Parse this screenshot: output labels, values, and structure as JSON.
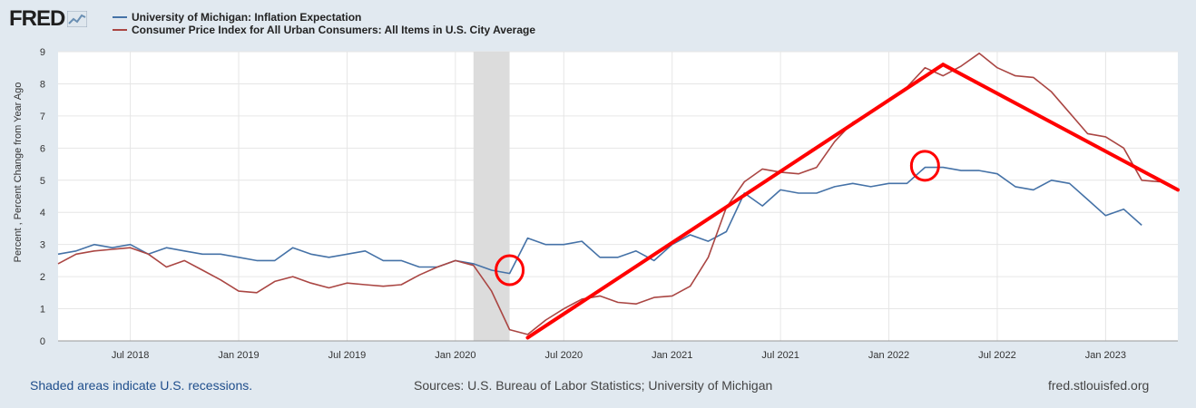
{
  "header": {
    "logo_text": "FRED",
    "logo_icon": "fred-chart-icon"
  },
  "legend": [
    {
      "label": "University of Michigan: Inflation Expectation",
      "color": "#4572a7"
    },
    {
      "label": "Consumer Price Index for All Urban Consumers: All Items in U.S. City Average",
      "color": "#aa4643"
    }
  ],
  "footer": {
    "recession_note": "Shaded areas indicate U.S. recessions.",
    "sources": "Sources: U.S. Bureau of Labor Statistics; University of Michigan",
    "site": "fred.stlouisfed.org"
  },
  "chart_data": {
    "type": "line",
    "ylabel": "Percent , Percent Change from Year Ago",
    "ylim": [
      0,
      9
    ],
    "yticks": [
      0,
      1,
      2,
      3,
      4,
      5,
      6,
      7,
      8,
      9
    ],
    "xrange": [
      "2018-03",
      "2023-05"
    ],
    "xticks": [
      {
        "label": "Jul 2018",
        "date": "2018-07"
      },
      {
        "label": "Jan 2019",
        "date": "2019-01"
      },
      {
        "label": "Jul 2019",
        "date": "2019-07"
      },
      {
        "label": "Jan 2020",
        "date": "2020-01"
      },
      {
        "label": "Jul 2020",
        "date": "2020-07"
      },
      {
        "label": "Jan 2021",
        "date": "2021-01"
      },
      {
        "label": "Jul 2021",
        "date": "2021-07"
      },
      {
        "label": "Jan 2022",
        "date": "2022-01"
      },
      {
        "label": "Jul 2022",
        "date": "2022-07"
      },
      {
        "label": "Jan 2023",
        "date": "2023-01"
      }
    ],
    "grid": true,
    "recession": {
      "start": "2020-02",
      "end": "2020-04"
    },
    "x": [
      "2018-03",
      "2018-04",
      "2018-05",
      "2018-06",
      "2018-07",
      "2018-08",
      "2018-09",
      "2018-10",
      "2018-11",
      "2018-12",
      "2019-01",
      "2019-02",
      "2019-03",
      "2019-04",
      "2019-05",
      "2019-06",
      "2019-07",
      "2019-08",
      "2019-09",
      "2019-10",
      "2019-11",
      "2019-12",
      "2020-01",
      "2020-02",
      "2020-03",
      "2020-04",
      "2020-05",
      "2020-06",
      "2020-07",
      "2020-08",
      "2020-09",
      "2020-10",
      "2020-11",
      "2020-12",
      "2021-01",
      "2021-02",
      "2021-03",
      "2021-04",
      "2021-05",
      "2021-06",
      "2021-07",
      "2021-08",
      "2021-09",
      "2021-10",
      "2021-11",
      "2021-12",
      "2022-01",
      "2022-02",
      "2022-03",
      "2022-04",
      "2022-05",
      "2022-06",
      "2022-07",
      "2022-08",
      "2022-09",
      "2022-10",
      "2022-11",
      "2022-12",
      "2023-01",
      "2023-02",
      "2023-03",
      "2023-04"
    ],
    "series": [
      {
        "name": "University of Michigan: Inflation Expectation",
        "color": "#4572a7",
        "values": [
          2.7,
          2.8,
          3.0,
          2.9,
          3.0,
          2.7,
          2.9,
          2.8,
          2.7,
          2.7,
          2.6,
          2.5,
          2.5,
          2.9,
          2.7,
          2.6,
          2.7,
          2.8,
          2.5,
          2.5,
          2.3,
          2.3,
          2.5,
          2.4,
          2.2,
          2.1,
          3.2,
          3.0,
          3.0,
          3.1,
          2.6,
          2.6,
          2.8,
          2.5,
          3.0,
          3.3,
          3.1,
          3.4,
          4.6,
          4.2,
          4.7,
          4.6,
          4.6,
          4.8,
          4.9,
          4.8,
          4.9,
          4.9,
          5.4,
          5.4,
          5.3,
          5.3,
          5.2,
          4.8,
          4.7,
          5.0,
          4.9,
          4.4,
          3.9,
          4.1,
          3.6,
          null
        ]
      },
      {
        "name": "Consumer Price Index for All Urban Consumers: All Items in U.S. City Average",
        "color": "#aa4643",
        "values": [
          2.4,
          2.7,
          2.8,
          2.85,
          2.9,
          2.7,
          2.3,
          2.5,
          2.2,
          1.9,
          1.55,
          1.5,
          1.85,
          2.0,
          1.8,
          1.65,
          1.8,
          1.75,
          1.7,
          1.75,
          2.05,
          2.3,
          2.5,
          2.35,
          1.55,
          0.35,
          0.2,
          0.65,
          1.0,
          1.3,
          1.4,
          1.2,
          1.15,
          1.35,
          1.4,
          1.7,
          2.6,
          4.15,
          4.95,
          5.35,
          5.25,
          5.2,
          5.4,
          6.2,
          6.8,
          7.1,
          7.5,
          7.9,
          8.5,
          8.25,
          8.55,
          8.95,
          8.5,
          8.25,
          8.2,
          7.75,
          7.1,
          6.45,
          6.35,
          6.0,
          5.0,
          4.95
        ]
      }
    ],
    "annotations": [
      {
        "type": "line",
        "from": [
          "2020-05",
          0.1
        ],
        "to": [
          "2022-04",
          8.6
        ],
        "color": "#ff0000"
      },
      {
        "type": "line",
        "from": [
          "2022-04",
          8.6
        ],
        "to": [
          "2023-05",
          4.7
        ],
        "color": "#ff0000"
      },
      {
        "type": "circle",
        "at": [
          "2020-04",
          2.2
        ],
        "color": "#ff0000"
      },
      {
        "type": "circle",
        "at": [
          "2022-03",
          5.45
        ],
        "color": "#ff0000"
      }
    ]
  }
}
